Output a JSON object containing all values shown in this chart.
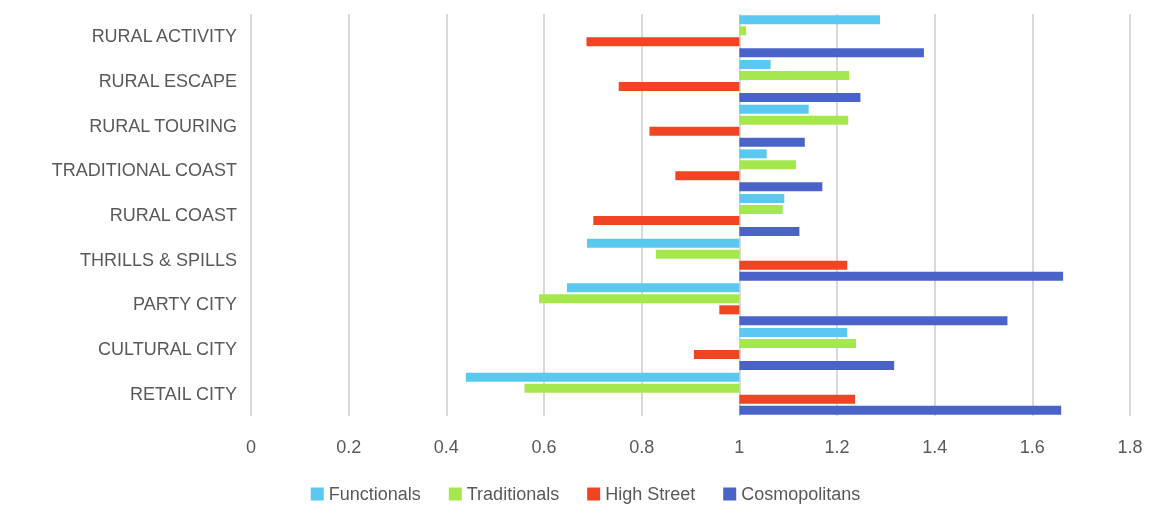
{
  "chart_data": {
    "type": "bar",
    "orientation": "horizontal",
    "categories": [
      "RURAL ACTIVITY",
      "RURAL ESCAPE",
      "RURAL TOURING",
      "TRADITIONAL COAST",
      "RURAL COAST",
      "THRILLS & SPILLS",
      "PARTY CITY",
      "CULTURAL CITY",
      "RETAIL CITY"
    ],
    "series": [
      {
        "name": "Functionals",
        "color": "#5bc8f0",
        "base": [
          1,
          1,
          1,
          1,
          1,
          1,
          1,
          1,
          1
        ],
        "values": [
          0.288,
          0.064,
          0.142,
          0.056,
          0.092,
          -0.312,
          -0.353,
          0.221,
          -0.56
        ]
      },
      {
        "name": "Traditionals",
        "color": "#a5e84e",
        "base": [
          1,
          1,
          1,
          1,
          1,
          1,
          1,
          1,
          1
        ],
        "values": [
          0.014,
          0.225,
          0.223,
          0.116,
          0.089,
          -0.171,
          -0.41,
          0.239,
          -0.44
        ]
      },
      {
        "name": "High Street",
        "color": "#f04423",
        "base": [
          1,
          1,
          1,
          1,
          1,
          1,
          1,
          1,
          1
        ],
        "values": [
          -0.313,
          -0.247,
          -0.184,
          -0.131,
          -0.299,
          0.221,
          -0.041,
          -0.093,
          0.237
        ]
      },
      {
        "name": "Cosmopolitans",
        "color": "#4a63c8",
        "base": [
          1,
          1,
          1,
          1,
          1,
          1,
          1,
          1,
          1
        ],
        "values": [
          0.378,
          0.248,
          0.134,
          0.17,
          0.123,
          0.663,
          0.549,
          0.317,
          0.659
        ]
      }
    ],
    "xlim": [
      0,
      1.8
    ],
    "xticks": [
      0,
      0.2,
      0.4,
      0.6,
      0.8,
      1,
      1.2,
      1.4,
      1.6,
      1.8
    ],
    "grid": "x",
    "legend": "bottom"
  }
}
